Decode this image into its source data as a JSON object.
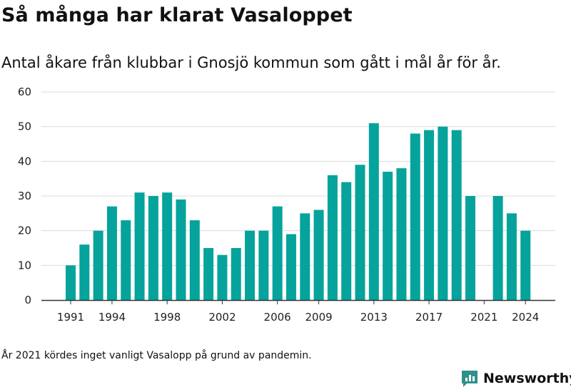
{
  "colors": {
    "bar": "#05a39c",
    "grid": "#dcdcdc",
    "axis": "#333333",
    "brand": "#2f8f8a"
  },
  "chart_data": {
    "type": "bar",
    "title": "Så många har klarat Vasaloppet",
    "subtitle": "Antal åkare från klubbar i Gnosjö kommun som gått i mål år för år.",
    "x": [
      1991,
      1992,
      1993,
      1994,
      1995,
      1996,
      1997,
      1998,
      1999,
      2000,
      2001,
      2002,
      2003,
      2004,
      2005,
      2006,
      2007,
      2008,
      2009,
      2010,
      2011,
      2012,
      2013,
      2014,
      2015,
      2016,
      2017,
      2018,
      2019,
      2020,
      2021,
      2022,
      2023,
      2024
    ],
    "values": [
      10,
      16,
      20,
      27,
      23,
      31,
      30,
      31,
      29,
      23,
      15,
      13,
      15,
      20,
      20,
      27,
      19,
      25,
      26,
      36,
      34,
      39,
      51,
      37,
      38,
      48,
      49,
      50,
      49,
      30,
      0,
      30,
      25,
      20
    ],
    "x_ticks": [
      "1991",
      "1994",
      "1998",
      "2002",
      "2006",
      "2009",
      "2013",
      "2017",
      "2021",
      "2024"
    ],
    "y_ticks": [
      "0",
      "10",
      "20",
      "30",
      "40",
      "50",
      "60"
    ],
    "ylim": [
      0,
      60
    ],
    "grid": true,
    "note": "År 2021 kördes inget vanligt Vasalopp på grund av pandemin."
  },
  "brand": {
    "name": "Newsworthy",
    "icon": "newsworthy-logo-icon"
  }
}
